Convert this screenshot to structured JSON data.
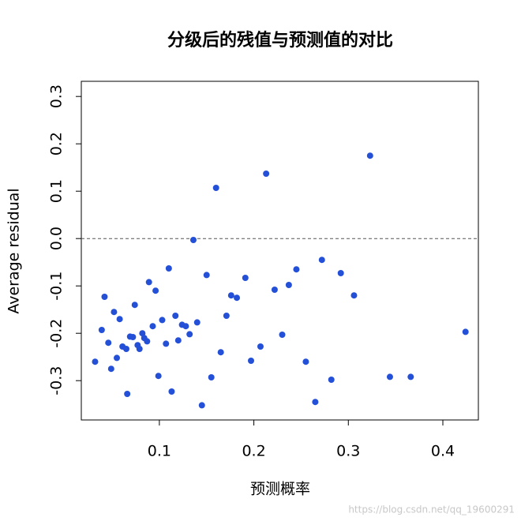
{
  "chart_data": {
    "type": "scatter",
    "title": "分级后的残值与预测值的对比",
    "x_label": "预测概率",
    "y_label": "Average residual",
    "watermark": "https://blog.csdn.net/qq_19600291",
    "xlim": [
      0.0174,
      0.4376
    ],
    "ylim": [
      -0.383,
      0.332
    ],
    "xticks": [
      0.1,
      0.2,
      0.3,
      0.4
    ],
    "yticks": [
      -0.3,
      -0.2,
      -0.1,
      {
        "value": 0,
        "label": "0.0"
      },
      0.1,
      0.2,
      0.3
    ],
    "reference_line": {
      "y": 0,
      "style": "dashed"
    },
    "color": "#2450d8",
    "x": [
      0.032,
      0.039,
      0.042,
      0.046,
      0.049,
      0.052,
      0.055,
      0.058,
      0.061,
      0.065,
      0.066,
      0.069,
      0.072,
      0.074,
      0.077,
      0.079,
      0.082,
      0.084,
      0.087,
      0.089,
      0.093,
      0.096,
      0.099,
      0.103,
      0.107,
      0.11,
      0.113,
      0.117,
      0.12,
      0.124,
      0.128,
      0.132,
      0.136,
      0.14,
      0.145,
      0.15,
      0.155,
      0.16,
      0.165,
      0.171,
      0.176,
      0.182,
      0.191,
      0.197,
      0.207,
      0.213,
      0.222,
      0.23,
      0.237,
      0.245,
      0.255,
      0.265,
      0.272,
      0.282,
      0.292,
      0.306,
      0.323,
      0.344,
      0.366,
      0.424
    ],
    "values": [
      -0.26,
      -0.193,
      -0.123,
      -0.22,
      -0.275,
      -0.155,
      -0.252,
      -0.17,
      -0.228,
      -0.233,
      -0.328,
      -0.207,
      -0.208,
      -0.14,
      -0.225,
      -0.233,
      -0.2,
      -0.21,
      -0.217,
      -0.092,
      -0.185,
      -0.11,
      -0.29,
      -0.172,
      -0.222,
      -0.063,
      -0.323,
      -0.163,
      -0.215,
      -0.182,
      -0.185,
      -0.202,
      -0.003,
      -0.177,
      -0.352,
      -0.077,
      -0.293,
      0.107,
      -0.24,
      -0.163,
      -0.12,
      -0.125,
      -0.083,
      -0.258,
      -0.228,
      0.137,
      -0.108,
      -0.203,
      -0.098,
      -0.065,
      -0.26,
      -0.345,
      -0.045,
      -0.298,
      -0.073,
      -0.12,
      0.175,
      -0.292,
      -0.292,
      -0.197
    ]
  }
}
